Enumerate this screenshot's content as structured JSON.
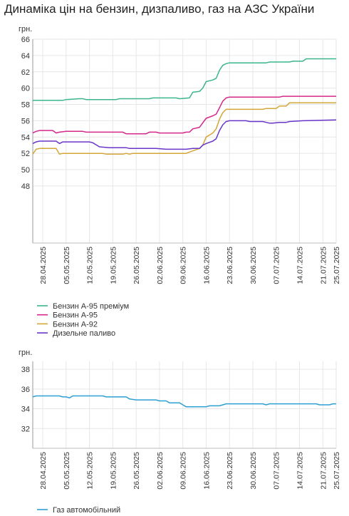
{
  "page": {
    "title": "Динаміка цін на бензин, дизпаливо, газ на АЗС України"
  },
  "chart_data": [
    {
      "type": "line",
      "unit_label": "грн.",
      "ylim": [
        41,
        66
      ],
      "yticks": [
        48,
        50,
        52,
        54,
        56,
        58,
        60,
        62,
        64,
        66
      ],
      "x_range": [
        "2025-04-25",
        "2025-07-25"
      ],
      "x_ticks": [
        "28.04.2025",
        "05.05.2025",
        "12.05.2025",
        "19.05.2025",
        "26.05.2025",
        "02.06.2025",
        "09.06.2025",
        "16.06.2025",
        "23.06.2025",
        "30.06.2025",
        "07.07.2025",
        "14.07.2025",
        "21.07.2025",
        "25.07.2025"
      ],
      "grid": true,
      "legend_position": "bottom-left",
      "series": [
        {
          "name": "Бензин А-95 преміум",
          "color": "#3bb58e",
          "points": [
            [
              "2025-04-25",
              58.5
            ],
            [
              "2025-05-04",
              58.5
            ],
            [
              "2025-05-05",
              58.6
            ],
            [
              "2025-05-09",
              58.7
            ],
            [
              "2025-05-10",
              58.7
            ],
            [
              "2025-05-11",
              58.6
            ],
            [
              "2025-05-20",
              58.6
            ],
            [
              "2025-05-21",
              58.7
            ],
            [
              "2025-05-30",
              58.7
            ],
            [
              "2025-05-31",
              58.8
            ],
            [
              "2025-06-07",
              58.8
            ],
            [
              "2025-06-08",
              58.7
            ],
            [
              "2025-06-11",
              58.8
            ],
            [
              "2025-06-12",
              59.5
            ],
            [
              "2025-06-14",
              59.6
            ],
            [
              "2025-06-15",
              60.0
            ],
            [
              "2025-06-16",
              60.8
            ],
            [
              "2025-06-18",
              61.0
            ],
            [
              "2025-06-19",
              61.2
            ],
            [
              "2025-06-20",
              62.2
            ],
            [
              "2025-06-21",
              62.8
            ],
            [
              "2025-06-22",
              63.0
            ],
            [
              "2025-06-23",
              63.1
            ],
            [
              "2025-07-04",
              63.1
            ],
            [
              "2025-07-05",
              63.2
            ],
            [
              "2025-07-11",
              63.2
            ],
            [
              "2025-07-12",
              63.3
            ],
            [
              "2025-07-15",
              63.3
            ],
            [
              "2025-07-16",
              63.6
            ],
            [
              "2025-07-25",
              63.6
            ]
          ]
        },
        {
          "name": "Бензин А-95",
          "color": "#d6278a",
          "points": [
            [
              "2025-04-25",
              54.5
            ],
            [
              "2025-04-26",
              54.7
            ],
            [
              "2025-04-27",
              54.8
            ],
            [
              "2025-05-01",
              54.8
            ],
            [
              "2025-05-02",
              54.5
            ],
            [
              "2025-05-03",
              54.6
            ],
            [
              "2025-05-05",
              54.7
            ],
            [
              "2025-05-10",
              54.7
            ],
            [
              "2025-05-11",
              54.6
            ],
            [
              "2025-05-22",
              54.6
            ],
            [
              "2025-05-23",
              54.4
            ],
            [
              "2025-05-29",
              54.4
            ],
            [
              "2025-05-30",
              54.6
            ],
            [
              "2025-06-01",
              54.6
            ],
            [
              "2025-06-02",
              54.5
            ],
            [
              "2025-06-09",
              54.5
            ],
            [
              "2025-06-10",
              54.6
            ],
            [
              "2025-06-11",
              54.6
            ],
            [
              "2025-06-12",
              55.0
            ],
            [
              "2025-06-14",
              55.2
            ],
            [
              "2025-06-16",
              56.3
            ],
            [
              "2025-06-18",
              56.6
            ],
            [
              "2025-06-19",
              56.8
            ],
            [
              "2025-06-20",
              57.6
            ],
            [
              "2025-06-21",
              58.4
            ],
            [
              "2025-06-22",
              58.8
            ],
            [
              "2025-06-23",
              58.9
            ],
            [
              "2025-07-08",
              58.9
            ],
            [
              "2025-07-09",
              59.0
            ],
            [
              "2025-07-25",
              59.0
            ]
          ]
        },
        {
          "name": "Бензин А-92",
          "color": "#d4a637",
          "points": [
            [
              "2025-04-25",
              51.9
            ],
            [
              "2025-04-26",
              52.5
            ],
            [
              "2025-04-27",
              52.6
            ],
            [
              "2025-05-02",
              52.6
            ],
            [
              "2025-05-03",
              51.9
            ],
            [
              "2025-05-04",
              52.0
            ],
            [
              "2025-05-16",
              52.0
            ],
            [
              "2025-05-17",
              51.9
            ],
            [
              "2025-05-22",
              51.9
            ],
            [
              "2025-05-23",
              52.0
            ],
            [
              "2025-05-24",
              51.9
            ],
            [
              "2025-05-25",
              52.0
            ],
            [
              "2025-06-10",
              52.0
            ],
            [
              "2025-06-12",
              52.3
            ],
            [
              "2025-06-14",
              52.6
            ],
            [
              "2025-06-15",
              53.0
            ],
            [
              "2025-06-16",
              54.0
            ],
            [
              "2025-06-18",
              54.5
            ],
            [
              "2025-06-19",
              55.0
            ],
            [
              "2025-06-20",
              56.2
            ],
            [
              "2025-06-21",
              57.0
            ],
            [
              "2025-06-22",
              57.4
            ],
            [
              "2025-07-03",
              57.4
            ],
            [
              "2025-07-04",
              57.5
            ],
            [
              "2025-07-07",
              57.5
            ],
            [
              "2025-07-08",
              57.8
            ],
            [
              "2025-07-10",
              57.8
            ],
            [
              "2025-07-11",
              58.2
            ],
            [
              "2025-07-25",
              58.2
            ]
          ]
        },
        {
          "name": "Дизельне паливо",
          "color": "#6a35c9",
          "points": [
            [
              "2025-04-25",
              53.2
            ],
            [
              "2025-04-26",
              53.4
            ],
            [
              "2025-04-27",
              53.5
            ],
            [
              "2025-05-02",
              53.5
            ],
            [
              "2025-05-03",
              53.2
            ],
            [
              "2025-05-04",
              53.4
            ],
            [
              "2025-05-09",
              53.4
            ],
            [
              "2025-05-10",
              53.4
            ],
            [
              "2025-05-12",
              53.4
            ],
            [
              "2025-05-13",
              53.3
            ],
            [
              "2025-05-15",
              52.8
            ],
            [
              "2025-05-18",
              52.7
            ],
            [
              "2025-05-23",
              52.7
            ],
            [
              "2025-05-24",
              52.6
            ],
            [
              "2025-06-01",
              52.6
            ],
            [
              "2025-06-04",
              52.5
            ],
            [
              "2025-06-10",
              52.5
            ],
            [
              "2025-06-12",
              52.6
            ],
            [
              "2025-06-14",
              52.6
            ],
            [
              "2025-06-15",
              53.0
            ],
            [
              "2025-06-16",
              53.2
            ],
            [
              "2025-06-18",
              53.5
            ],
            [
              "2025-06-19",
              53.8
            ],
            [
              "2025-06-20",
              54.8
            ],
            [
              "2025-06-21",
              55.5
            ],
            [
              "2025-06-22",
              55.9
            ],
            [
              "2025-06-23",
              56.0
            ],
            [
              "2025-06-28",
              56.0
            ],
            [
              "2025-06-29",
              55.9
            ],
            [
              "2025-07-03",
              55.9
            ],
            [
              "2025-07-04",
              55.8
            ],
            [
              "2025-07-05",
              55.7
            ],
            [
              "2025-07-06",
              55.7
            ],
            [
              "2025-07-08",
              55.8
            ],
            [
              "2025-07-10",
              55.8
            ],
            [
              "2025-07-11",
              55.9
            ],
            [
              "2025-07-15",
              56.0
            ],
            [
              "2025-07-25",
              56.1
            ]
          ]
        }
      ]
    },
    {
      "type": "line",
      "unit_label": "грн.",
      "ylim": [
        30,
        38.8
      ],
      "yticks": [
        32,
        34,
        36,
        38
      ],
      "x_range": [
        "2025-04-25",
        "2025-07-25"
      ],
      "x_ticks": [
        "28.04.2025",
        "05.05.2025",
        "12.05.2025",
        "19.05.2025",
        "26.05.2025",
        "02.06.2025",
        "09.06.2025",
        "16.06.2025",
        "23.06.2025",
        "30.06.2025",
        "07.07.2025",
        "14.07.2025",
        "21.07.2025",
        "25.07.2025"
      ],
      "grid": true,
      "legend_position": "bottom-left",
      "series": [
        {
          "name": "Газ автомобільний",
          "color": "#2f9fd4",
          "points": [
            [
              "2025-04-25",
              35.2
            ],
            [
              "2025-04-26",
              35.3
            ],
            [
              "2025-05-03",
              35.3
            ],
            [
              "2025-05-04",
              35.2
            ],
            [
              "2025-05-05",
              35.2
            ],
            [
              "2025-05-06",
              35.1
            ],
            [
              "2025-05-07",
              35.3
            ],
            [
              "2025-05-16",
              35.3
            ],
            [
              "2025-05-17",
              35.2
            ],
            [
              "2025-05-23",
              35.2
            ],
            [
              "2025-05-24",
              35.0
            ],
            [
              "2025-05-26",
              34.9
            ],
            [
              "2025-06-01",
              34.9
            ],
            [
              "2025-06-02",
              34.8
            ],
            [
              "2025-06-04",
              34.8
            ],
            [
              "2025-06-05",
              34.6
            ],
            [
              "2025-06-08",
              34.6
            ],
            [
              "2025-06-09",
              34.4
            ],
            [
              "2025-06-10",
              34.2
            ],
            [
              "2025-06-16",
              34.2
            ],
            [
              "2025-06-17",
              34.3
            ],
            [
              "2025-06-20",
              34.3
            ],
            [
              "2025-06-21",
              34.4
            ],
            [
              "2025-06-22",
              34.5
            ],
            [
              "2025-07-03",
              34.5
            ],
            [
              "2025-07-04",
              34.4
            ],
            [
              "2025-07-05",
              34.5
            ],
            [
              "2025-07-19",
              34.5
            ],
            [
              "2025-07-20",
              34.4
            ],
            [
              "2025-07-23",
              34.4
            ],
            [
              "2025-07-24",
              34.5
            ],
            [
              "2025-07-25",
              34.5
            ]
          ]
        }
      ]
    }
  ]
}
